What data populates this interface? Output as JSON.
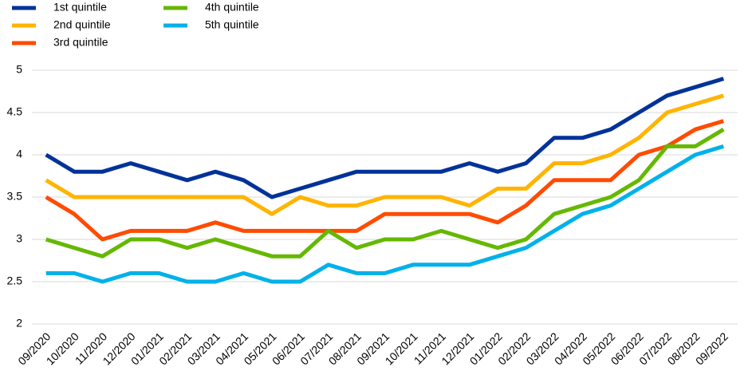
{
  "chart_data": {
    "type": "line",
    "categories": [
      "09/2020",
      "10/2020",
      "11/2020",
      "12/2020",
      "01/2021",
      "02/2021",
      "03/2021",
      "04/2021",
      "05/2021",
      "06/2021",
      "07/2021",
      "08/2021",
      "09/2021",
      "10/2021",
      "11/2021",
      "12/2021",
      "01/2022",
      "02/2022",
      "03/2022",
      "04/2022",
      "05/2022",
      "06/2022",
      "07/2022",
      "08/2022",
      "09/2022"
    ],
    "series": [
      {
        "name": "1st quintile",
        "color": "#003299",
        "values": [
          4.0,
          3.8,
          3.8,
          3.9,
          3.8,
          3.7,
          3.8,
          3.7,
          3.5,
          3.6,
          3.7,
          3.8,
          3.8,
          3.8,
          3.8,
          3.9,
          3.8,
          3.9,
          4.2,
          4.2,
          4.3,
          4.5,
          4.7,
          4.8,
          4.9
        ]
      },
      {
        "name": "2nd quintile",
        "color": "#ffb400",
        "values": [
          3.7,
          3.5,
          3.5,
          3.5,
          3.5,
          3.5,
          3.5,
          3.5,
          3.3,
          3.5,
          3.4,
          3.4,
          3.5,
          3.5,
          3.5,
          3.4,
          3.6,
          3.6,
          3.9,
          3.9,
          4.0,
          4.2,
          4.5,
          4.6,
          4.7
        ]
      },
      {
        "name": "3rd quintile",
        "color": "#ff4b00",
        "values": [
          3.5,
          3.3,
          3.0,
          3.1,
          3.1,
          3.1,
          3.2,
          3.1,
          3.1,
          3.1,
          3.1,
          3.1,
          3.3,
          3.3,
          3.3,
          3.3,
          3.2,
          3.4,
          3.7,
          3.7,
          3.7,
          4.0,
          4.1,
          4.3,
          4.4
        ]
      },
      {
        "name": "4th quintile",
        "color": "#65b800",
        "values": [
          3.0,
          2.9,
          2.8,
          3.0,
          3.0,
          2.9,
          3.0,
          2.9,
          2.8,
          2.8,
          3.1,
          2.9,
          3.0,
          3.0,
          3.1,
          3.0,
          2.9,
          3.0,
          3.3,
          3.4,
          3.5,
          3.7,
          4.1,
          4.1,
          4.3
        ]
      },
      {
        "name": "5th quintile",
        "color": "#00b1ea",
        "values": [
          2.6,
          2.6,
          2.5,
          2.6,
          2.6,
          2.5,
          2.5,
          2.6,
          2.5,
          2.5,
          2.7,
          2.6,
          2.6,
          2.7,
          2.7,
          2.7,
          2.8,
          2.9,
          3.1,
          3.3,
          3.4,
          3.6,
          3.8,
          4.0,
          4.1
        ]
      }
    ],
    "ylim": [
      2,
      5
    ],
    "yticks": [
      2,
      2.5,
      3,
      3.5,
      4,
      4.5,
      5
    ],
    "grid": true
  }
}
